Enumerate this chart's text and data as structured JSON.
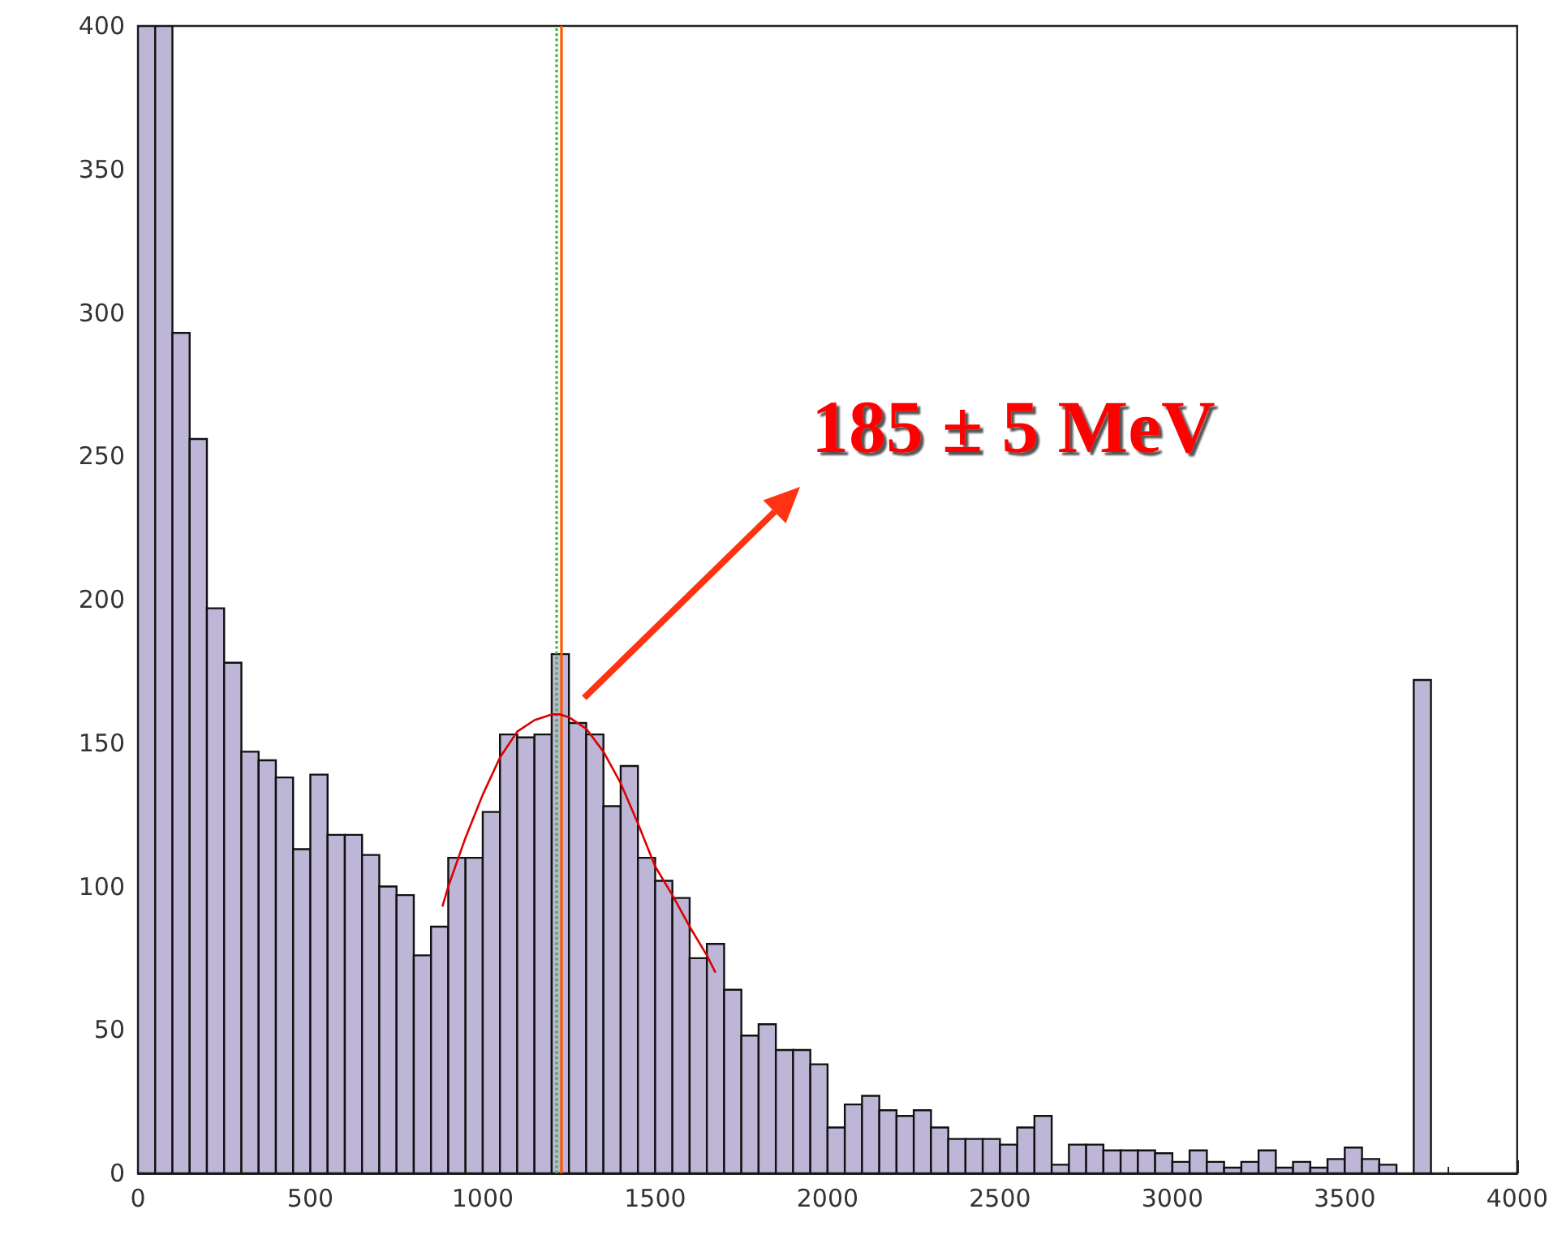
{
  "chart_data": {
    "type": "histogram",
    "bins": [
      0,
      50,
      100,
      150,
      200,
      250,
      300,
      350,
      400,
      450,
      500,
      550,
      600,
      650,
      700,
      750,
      800,
      850,
      900,
      950,
      1000,
      1050,
      1100,
      1150,
      1200,
      1250,
      1300,
      1350,
      1400,
      1450,
      1500,
      1550,
      1600,
      1650,
      1700,
      1750,
      1800,
      1850,
      1900,
      1950,
      2000,
      2050,
      2100,
      2150,
      2200,
      2250,
      2300,
      2350,
      2400,
      2450,
      2500,
      2550,
      2600,
      2650,
      2700,
      2750,
      2800,
      2850,
      2900,
      2950,
      3000,
      3050,
      3100,
      3150,
      3200,
      3250,
      3300,
      3350,
      3400,
      3450,
      3500,
      3550,
      3600,
      3650,
      3700,
      3750,
      3800,
      3850,
      3900,
      3950,
      4000
    ],
    "series": [
      {
        "color": "#bdb6d6",
        "values": [
          400,
          400,
          293,
          256,
          197,
          178,
          147,
          144,
          138,
          113,
          139,
          118,
          118,
          111,
          100,
          97,
          76,
          86,
          110,
          110,
          126,
          153,
          152,
          153,
          181,
          157,
          153,
          128,
          142,
          110,
          102,
          96,
          75,
          80,
          64,
          48,
          52,
          43,
          43,
          38,
          16,
          24,
          27,
          22,
          20,
          22,
          16,
          12,
          12,
          12,
          10,
          16,
          20,
          3,
          10,
          10,
          8,
          8,
          8,
          7,
          4,
          8,
          4,
          2,
          4,
          8,
          2,
          4,
          2,
          5,
          9,
          5,
          3,
          0,
          172,
          0,
          0,
          0,
          0,
          0
        ]
      },
      {
        "type": "line",
        "color": "#dd0000",
        "x": [
          883,
          900,
          950,
          1000,
          1050,
          1100,
          1150,
          1200,
          1225,
          1250,
          1300,
          1350,
          1400,
          1450,
          1500,
          1550,
          1600,
          1650,
          1675
        ],
        "values": [
          93,
          100,
          117,
          132,
          145,
          154,
          158,
          160,
          160,
          159,
          155,
          147,
          136,
          122,
          107,
          97,
          86,
          76,
          70
        ]
      }
    ],
    "xlim": [
      0,
      4000
    ],
    "xticks": [
      0,
      500,
      1000,
      1500,
      2000,
      2500,
      3000,
      3500,
      4000
    ],
    "ylim": [
      0,
      400
    ],
    "yticks": [
      0,
      50,
      100,
      150,
      200,
      250,
      300,
      350,
      400
    ],
    "ref_lines": [
      {
        "axis": "x",
        "value": 1215,
        "color": "#33bb33",
        "line_style": "dotted"
      },
      {
        "axis": "x",
        "value": 1225,
        "color": "#ff5500",
        "line_style": "solid"
      }
    ],
    "annotations": [
      "185 ± 5 MeV"
    ],
    "grid": false
  }
}
